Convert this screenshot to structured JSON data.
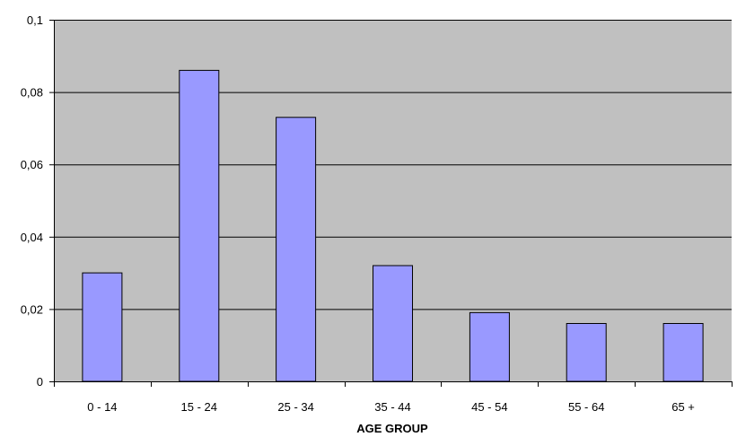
{
  "chart_data": {
    "type": "bar",
    "title": "",
    "xlabel": "AGE GROUP",
    "ylabel": "",
    "categories": [
      "0 - 14",
      "15 - 24",
      "25 - 34",
      "35 - 44",
      "45 - 54",
      "55 - 64",
      "65 +"
    ],
    "values": [
      0.03,
      0.086,
      0.073,
      0.032,
      0.019,
      0.016,
      0.016
    ],
    "ylim": [
      0,
      0.1
    ],
    "yticks": [
      0,
      0.02,
      0.04,
      0.06,
      0.08,
      0.1
    ],
    "ytick_labels": [
      "0",
      "0,02",
      "0,04",
      "0,06",
      "0,08",
      "0,1"
    ],
    "grid": true,
    "legend": "none",
    "colors": {
      "plot_background": "#c0c0c0",
      "bar_fill": "#9999ff",
      "bar_stroke": "#000000",
      "gridline": "#000000"
    }
  }
}
